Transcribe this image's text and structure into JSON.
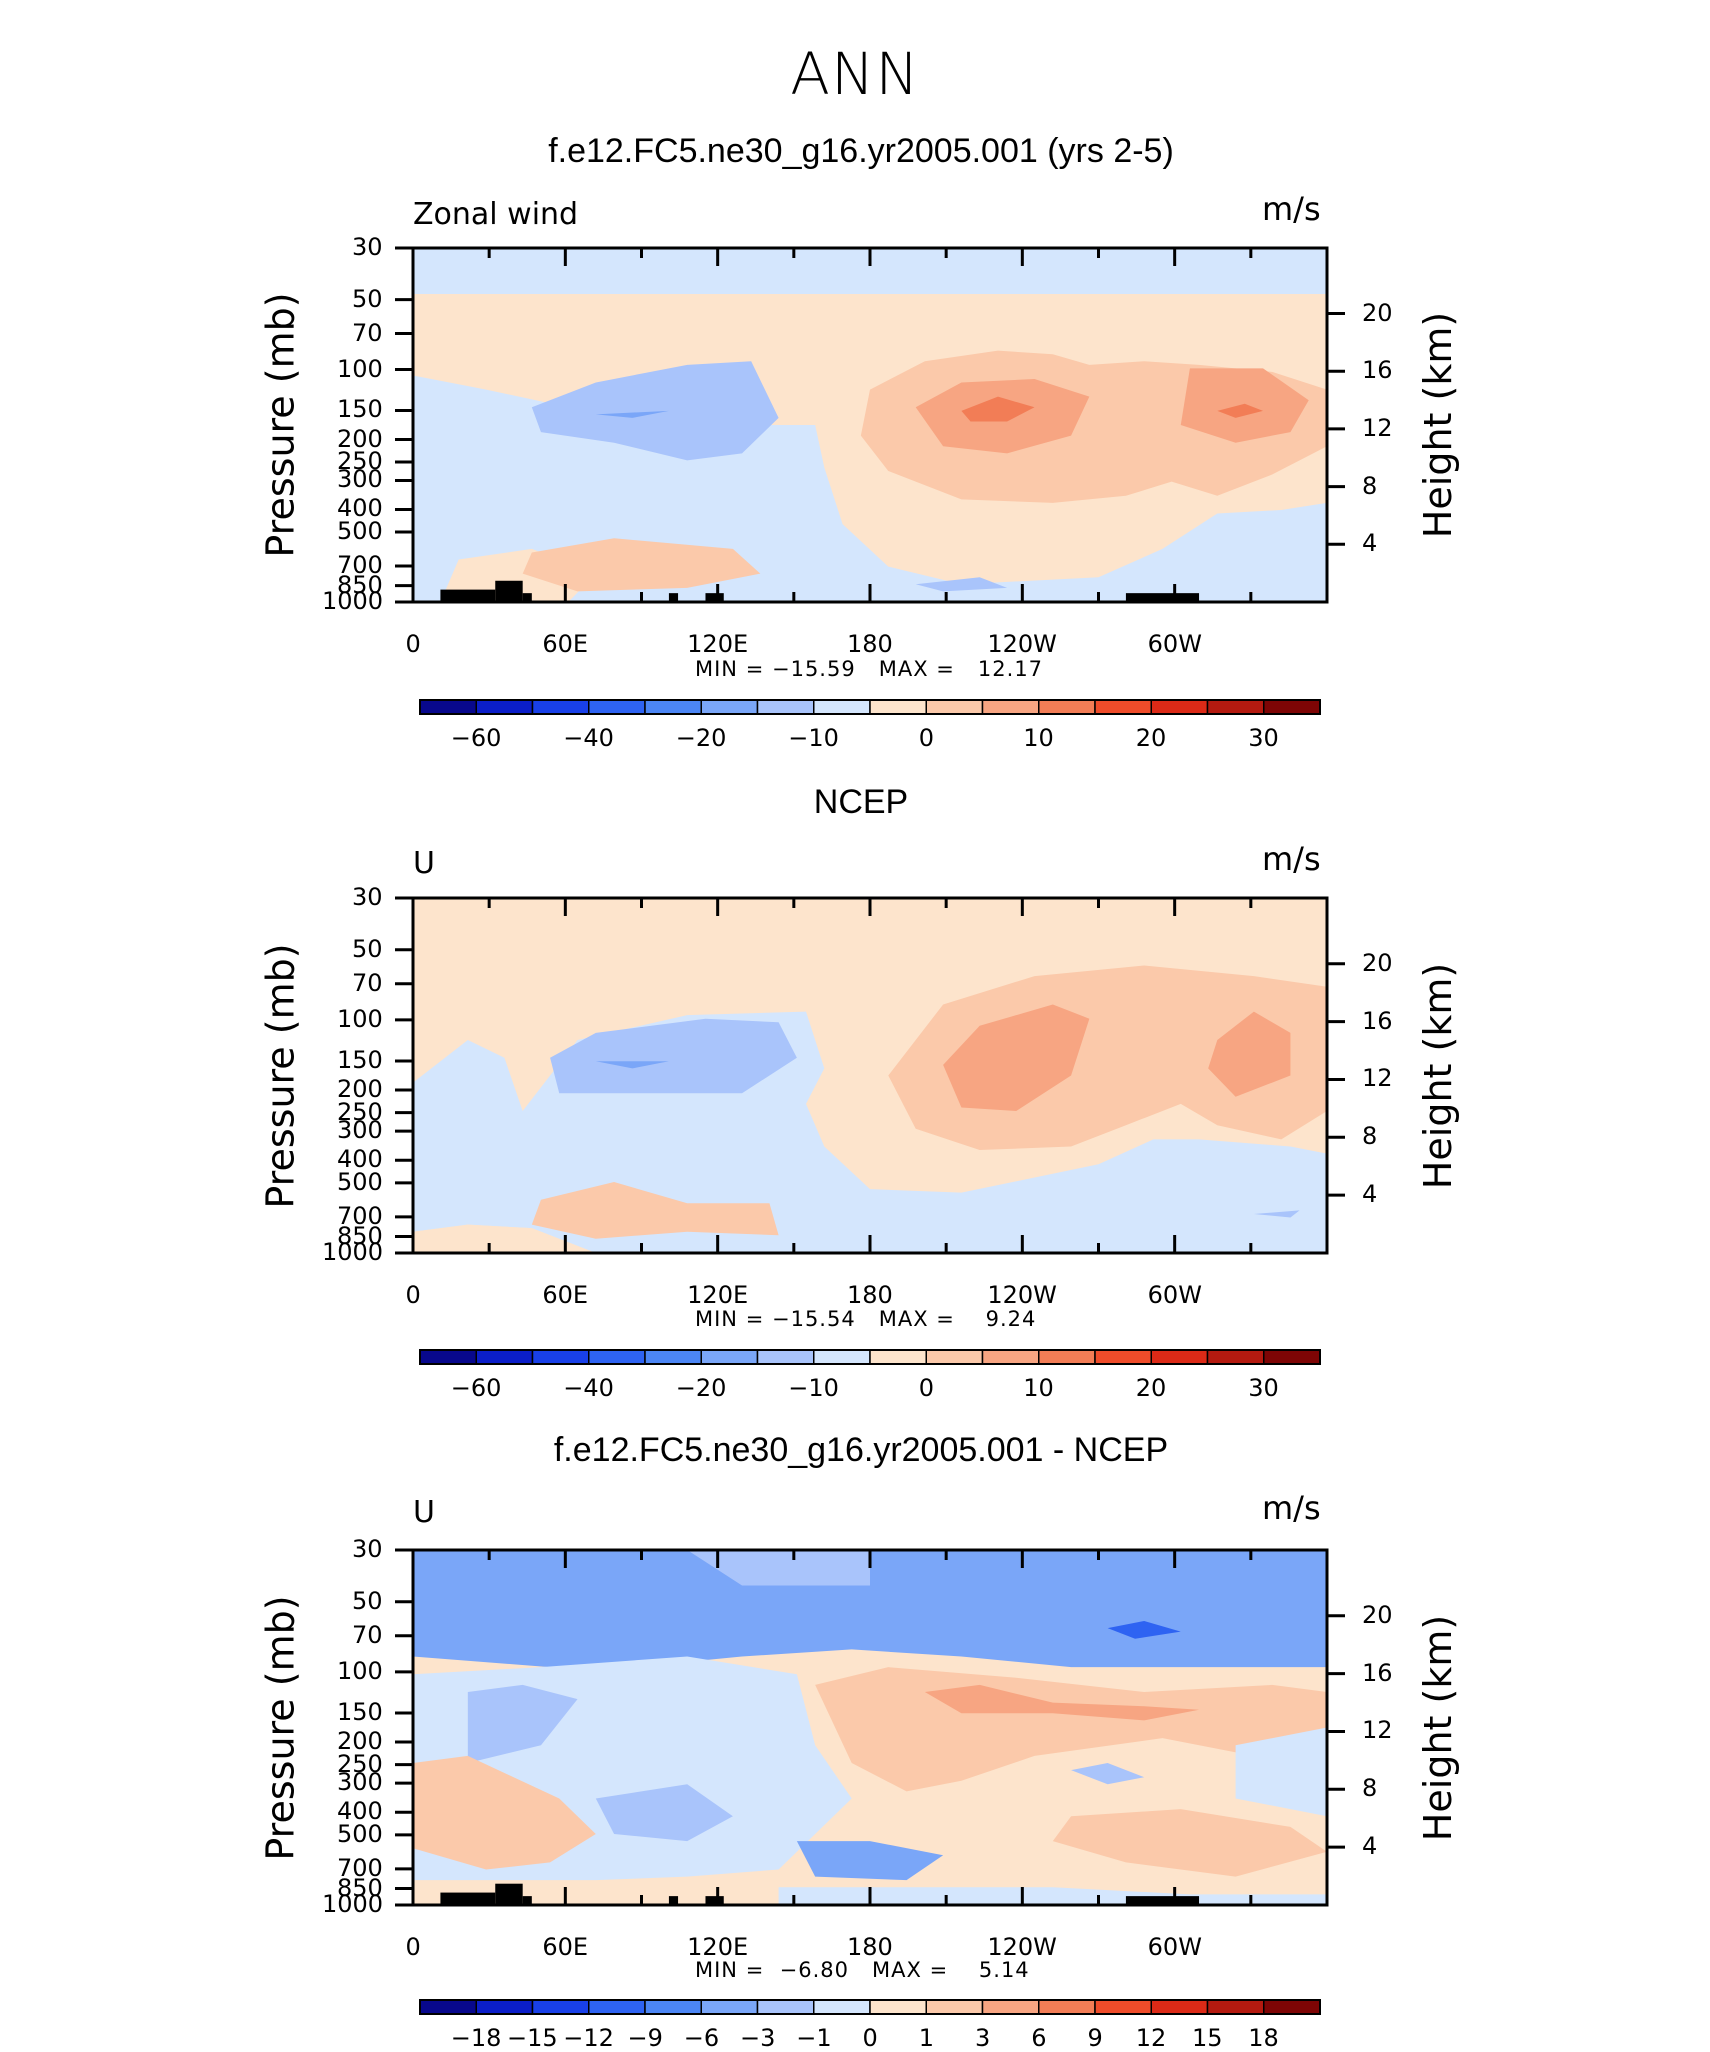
{
  "main_title": "ANN",
  "colors": {
    "levels_abs": [
      "#08088c",
      "#0b1ec8",
      "#1940e8",
      "#2e63f2",
      "#4c86f5",
      "#7aa6f8",
      "#a9c4fb",
      "#d4e6fd",
      "#fde4cc",
      "#fbc9aa",
      "#f7a582",
      "#f27d56",
      "#ef4c2a",
      "#db2a17",
      "#b41a10",
      "#7e0505"
    ],
    "levels_diff": [
      "#08088c",
      "#0b1ec8",
      "#1940e8",
      "#2e63f2",
      "#4c86f5",
      "#7aa6f8",
      "#a9c4fb",
      "#d4e6fd",
      "#fde4cc",
      "#fbc9aa",
      "#f7a582",
      "#f27d56",
      "#ef4c2a",
      "#db2a17",
      "#b41a10",
      "#7e0505"
    ]
  },
  "chart_data": [
    {
      "type": "heatmap",
      "title": "f.e12.FC5.ne30_g16.yr2005.001 (yrs 2-5)",
      "variable": "Zonal wind",
      "units": "m/s",
      "ylabel": "Pressure (mb)",
      "y2label": "Height (km)",
      "xlabel": "",
      "x_ticks": [
        "0",
        "60E",
        "120E",
        "180",
        "120W",
        "60W"
      ],
      "y_ticks": [
        "30",
        "50",
        "70",
        "100",
        "150",
        "200",
        "250",
        "300",
        "400",
        "500",
        "700",
        "850",
        "1000"
      ],
      "y2_ticks": [
        "20",
        "16",
        "12",
        "8",
        "4"
      ],
      "min_label": "MIN =",
      "min_value": "−15.59",
      "max_label": "MAX =",
      "max_value": "12.17",
      "colorbar_labels": [
        "−60",
        "−40",
        "−20",
        "−10",
        "0",
        "10",
        "20",
        "30"
      ]
    },
    {
      "type": "heatmap",
      "title": "NCEP",
      "variable": "U",
      "units": "m/s",
      "ylabel": "Pressure (mb)",
      "y2label": "Height (km)",
      "xlabel": "",
      "x_ticks": [
        "0",
        "60E",
        "120E",
        "180",
        "120W",
        "60W"
      ],
      "y_ticks": [
        "30",
        "50",
        "70",
        "100",
        "150",
        "200",
        "250",
        "300",
        "400",
        "500",
        "700",
        "850",
        "1000"
      ],
      "y2_ticks": [
        "20",
        "16",
        "12",
        "8",
        "4"
      ],
      "min_label": "MIN =",
      "min_value": "−15.54",
      "max_label": "MAX =",
      "max_value": "9.24",
      "colorbar_labels": [
        "−60",
        "−40",
        "−20",
        "−10",
        "0",
        "10",
        "20",
        "30"
      ]
    },
    {
      "type": "heatmap",
      "title": "f.e12.FC5.ne30_g16.yr2005.001 - NCEP",
      "variable": "U",
      "units": "m/s",
      "ylabel": "Pressure (mb)",
      "y2label": "Height (km)",
      "xlabel": "",
      "x_ticks": [
        "0",
        "60E",
        "120E",
        "180",
        "120W",
        "60W"
      ],
      "y_ticks": [
        "30",
        "50",
        "70",
        "100",
        "150",
        "200",
        "250",
        "300",
        "400",
        "500",
        "700",
        "850",
        "1000"
      ],
      "y2_ticks": [
        "20",
        "16",
        "12",
        "8",
        "4"
      ],
      "min_label": "MIN =",
      "min_value": "−6.80",
      "max_label": "MAX =",
      "max_value": "5.14",
      "colorbar_labels": [
        "−18",
        "−15",
        "−12",
        "−9",
        "−6",
        "−3",
        "−1",
        "0",
        "1",
        "3",
        "6",
        "9",
        "12",
        "15",
        "18"
      ]
    }
  ]
}
